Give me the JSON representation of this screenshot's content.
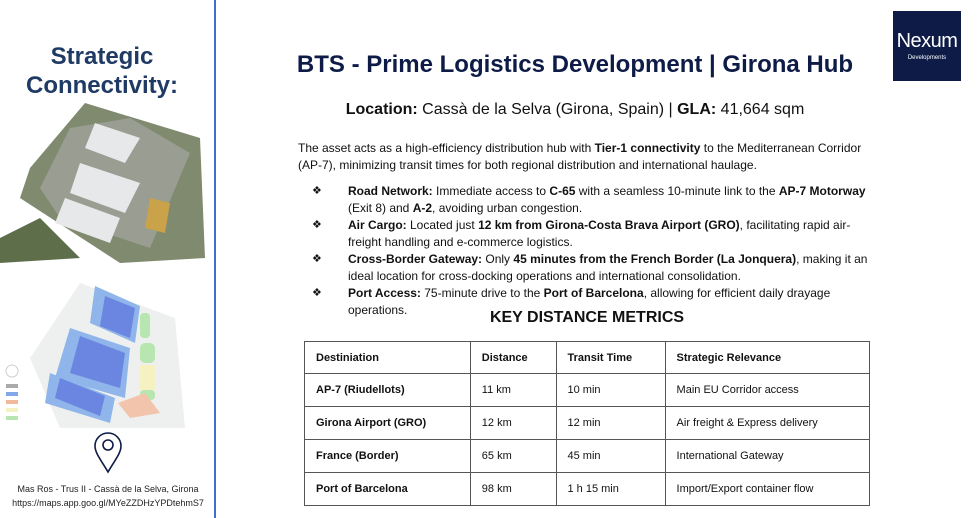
{
  "sidebar": {
    "title_line1": "Strategic",
    "title_line2": "Connectivity:",
    "address": "Mas Ros - Trus II - Cassà de la Selva, Girona",
    "map_url": "https://maps.app.goo.gl/MYeZZDHzYPDtehmS7",
    "pin_icon": "map-pin-icon",
    "accent_color": "#3d6fd1"
  },
  "logo": {
    "name": "Nexum",
    "sub": "Developments",
    "bg": "#0d1b46"
  },
  "header": {
    "title": "BTS - Prime Logistics Development | Girona Hub",
    "location_label": "Location:",
    "location_value": " Cassà de la Selva (Girona, Spain) | ",
    "gla_label": "GLA:",
    "gla_value": " 41,664 sqm"
  },
  "intro": [
    {
      "t": "The asset acts as a high-efficiency distribution hub with "
    },
    {
      "t": "Tier-1 connectivity",
      "b": true
    },
    {
      "t": " to the Mediterranean Corridor (AP-7), minimizing transit times for both regional distribution and international haulage."
    }
  ],
  "bullet_symbol": "❖",
  "bullets": [
    [
      {
        "t": "Road Network:",
        "b": true
      },
      {
        "t": " Immediate access to "
      },
      {
        "t": "C-65",
        "b": true
      },
      {
        "t": " with a seamless 10-minute link to the "
      },
      {
        "t": "AP-7 Motorway",
        "b": true
      },
      {
        "t": " (Exit 8) and "
      },
      {
        "t": "A-2",
        "b": true
      },
      {
        "t": ", avoiding urban congestion."
      }
    ],
    [
      {
        "t": "Air Cargo:",
        "b": true
      },
      {
        "t": " Located just "
      },
      {
        "t": "12 km from Girona-Costa Brava Airport (GRO)",
        "b": true
      },
      {
        "t": ", facilitating rapid air-freight handling and e-commerce logistics."
      }
    ],
    [
      {
        "t": "Cross-Border Gateway:",
        "b": true
      },
      {
        "t": " Only "
      },
      {
        "t": "45 minutes from the French Border (La Jonquera)",
        "b": true
      },
      {
        "t": ", making it an ideal location for cross-docking operations and international consolidation."
      }
    ],
    [
      {
        "t": "Port Access:",
        "b": true
      },
      {
        "t": " 75-minute drive to the "
      },
      {
        "t": "Port of Barcelona",
        "b": true
      },
      {
        "t": ", allowing for efficient daily drayage operations."
      }
    ]
  ],
  "metrics": {
    "title": "KEY DISTANCE METRICS",
    "headers": [
      "Destiniation",
      "Distance",
      "Transit Time",
      "Strategic Relevance"
    ],
    "rows": [
      [
        "AP-7 (Riudellots)",
        "11 km",
        "10 min",
        "Main EU Corridor access"
      ],
      [
        "Girona Airport (GRO)",
        "12 km",
        "12 min",
        "Air freight & Express delivery"
      ],
      [
        "France (Border)",
        "65 km",
        "45 min",
        "International Gateway"
      ],
      [
        "Port of Barcelona",
        "98 km",
        "1 h 15 min",
        "Import/Export container flow"
      ]
    ]
  }
}
